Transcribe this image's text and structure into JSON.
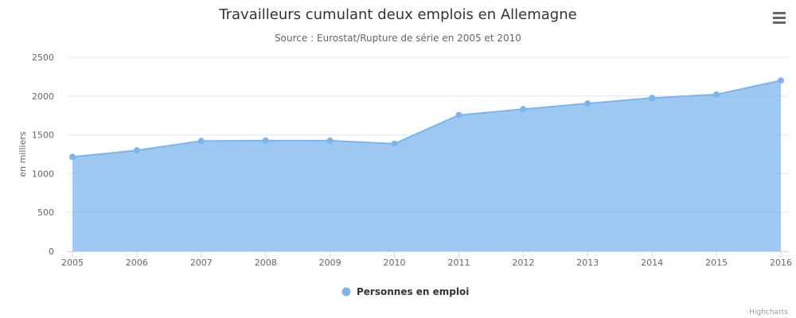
{
  "chart_data": {
    "type": "area",
    "title": "Travailleurs cumulant deux emplois en Allemagne",
    "subtitle": "Source : Eurostat/Rupture de série en 2005 et 2010",
    "xlabel": "",
    "ylabel": "en milliers",
    "categories": [
      "2005",
      "2006",
      "2007",
      "2008",
      "2009",
      "2010",
      "2011",
      "2012",
      "2013",
      "2014",
      "2015",
      "2016"
    ],
    "series": [
      {
        "name": "Personnes en emploi",
        "color": "#7cb5ec",
        "values": [
          1215,
          1300,
          1420,
          1425,
          1425,
          1385,
          1755,
          1830,
          1905,
          1975,
          2020,
          2200
        ]
      }
    ],
    "ylim": [
      0,
      2500
    ],
    "yticks": [
      "0",
      "500",
      "1000",
      "1500",
      "2000",
      "2500"
    ],
    "grid": true,
    "legend_position": "bottom-center"
  },
  "credits": "Highcharts",
  "menu": {
    "icon": "hamburger-menu-icon"
  }
}
